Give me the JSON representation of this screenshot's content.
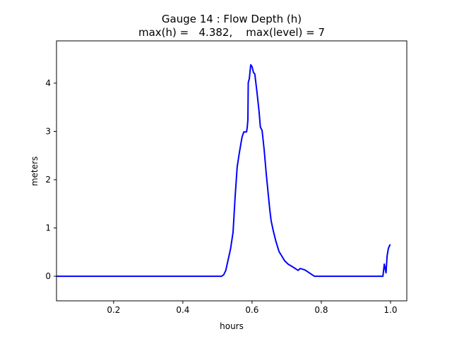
{
  "chart_data": {
    "type": "line",
    "title": "Gauge 14 : Flow Depth (h)",
    "subtitle": "max(h) =   4.382,    max(level) = 7",
    "xlabel": "hours",
    "ylabel": "meters",
    "xlim": [
      0.035,
      1.047
    ],
    "ylim": [
      -0.51,
      4.876
    ],
    "xticks": [
      0.2,
      0.4,
      0.6,
      0.8,
      1.0
    ],
    "xtick_labels": [
      "0.2",
      "0.4",
      "0.6",
      "0.8",
      "1.0"
    ],
    "yticks": [
      0,
      1,
      2,
      3,
      4
    ],
    "ytick_labels": [
      "0",
      "1",
      "2",
      "3",
      "4"
    ],
    "grid": false,
    "series": [
      {
        "color": "#0000ff",
        "x": [
          0.035,
          0.512,
          0.518,
          0.524,
          0.538,
          0.545,
          0.551,
          0.557,
          0.563,
          0.571,
          0.576,
          0.584,
          0.586,
          0.588,
          0.589,
          0.592,
          0.596,
          0.6,
          0.604,
          0.608,
          0.614,
          0.62,
          0.624,
          0.629,
          0.635,
          0.641,
          0.651,
          0.655,
          0.661,
          0.669,
          0.678,
          0.684,
          0.694,
          0.704,
          0.718,
          0.733,
          0.739,
          0.753,
          0.78,
          0.978,
          0.982,
          0.987,
          0.99,
          0.994,
          0.999
        ],
        "y": [
          0,
          0,
          0.03,
          0.12,
          0.57,
          0.91,
          1.64,
          2.26,
          2.55,
          2.88,
          2.99,
          2.99,
          3.09,
          3.24,
          4.01,
          4.09,
          4.38,
          4.34,
          4.22,
          4.19,
          3.82,
          3.43,
          3.09,
          3.02,
          2.61,
          2.12,
          1.39,
          1.15,
          0.95,
          0.72,
          0.51,
          0.44,
          0.32,
          0.25,
          0.19,
          0.12,
          0.16,
          0.13,
          0,
          0,
          0.25,
          0.07,
          0.42,
          0.58,
          0.66
        ]
      }
    ]
  }
}
